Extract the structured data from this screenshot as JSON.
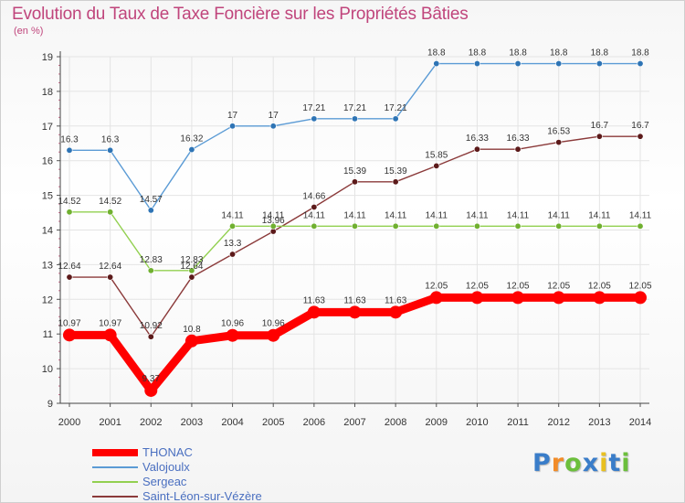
{
  "chart_data": {
    "type": "line",
    "title": "Evolution du Taux de Taxe Foncière sur les Propriétés Bâties",
    "ylabel": "(en %)",
    "xlabel": "",
    "ylim": [
      9,
      19
    ],
    "yticks": [
      "9",
      "10",
      "11",
      "12",
      "13",
      "14",
      "15",
      "16",
      "17",
      "18",
      "19"
    ],
    "categories": [
      "2000",
      "2001",
      "2002",
      "2003",
      "2004",
      "2005",
      "2006",
      "2007",
      "2008",
      "2009",
      "2010",
      "2011",
      "2012",
      "2013",
      "2014"
    ],
    "series": [
      {
        "name": "Valojoulx",
        "color": "#5b9bd5",
        "marker": "#2e74b5",
        "values": [
          16.3,
          16.3,
          14.57,
          16.32,
          17,
          17,
          17.21,
          17.21,
          17.21,
          18.8,
          18.8,
          18.8,
          18.8,
          18.8,
          18.8
        ],
        "labels": [
          "16.3",
          "16.3",
          "14.57",
          "16.32",
          "17",
          "17",
          "17.21",
          "17.21",
          "17.21",
          "18.8",
          "18.8",
          "18.8",
          "18.8",
          "18.8",
          "18.8"
        ]
      },
      {
        "name": "Saint-Léon-sur-Vézère",
        "color": "#8b3a3a",
        "marker": "#5c1a1a",
        "values": [
          12.64,
          12.64,
          10.92,
          12.64,
          13.3,
          13.96,
          14.66,
          15.39,
          15.39,
          15.85,
          16.33,
          16.33,
          16.53,
          16.7,
          16.7
        ],
        "labels": [
          "12.64",
          "12.64",
          "10.92",
          "12.64",
          "13.3",
          "13.96",
          "14.66",
          "15.39",
          "15.39",
          "15.85",
          "16.33",
          "16.33",
          "16.53",
          "16.7",
          "16.7"
        ]
      },
      {
        "name": "Sergeac",
        "color": "#92d050",
        "marker": "#70b030",
        "values": [
          14.52,
          14.52,
          12.83,
          12.83,
          14.11,
          14.11,
          14.11,
          14.11,
          14.11,
          14.11,
          14.11,
          14.11,
          14.11,
          14.11,
          14.11
        ],
        "labels": [
          "14.52",
          "14.52",
          "12.83",
          "12.83",
          "14.11",
          "14.11",
          "14.11",
          "14.11",
          "14.11",
          "14.11",
          "14.11",
          "14.11",
          "14.11",
          "14.11",
          "14.11"
        ]
      },
      {
        "name": "THONAC",
        "color": "#ff0000",
        "marker": "#ff0000",
        "values": [
          10.97,
          10.97,
          9.37,
          10.8,
          10.96,
          10.96,
          11.63,
          11.63,
          11.63,
          12.05,
          12.05,
          12.05,
          12.05,
          12.05,
          12.05
        ],
        "labels": [
          "10.97",
          "10.97",
          "9.37",
          "10.8",
          "10.96",
          "10.96",
          "11.63",
          "11.63",
          "11.63",
          "12.05",
          "12.05",
          "12.05",
          "12.05",
          "12.05",
          "12.05"
        ]
      }
    ],
    "legend": {
      "position": "bottom-left",
      "items": [
        {
          "name": "THONAC",
          "color": "#ff0000"
        },
        {
          "name": "Valojoulx",
          "color": "#5b9bd5"
        },
        {
          "name": "Sergeac",
          "color": "#92d050"
        },
        {
          "name": "Saint-Léon-sur-Vézère",
          "color": "#8b3a3a"
        }
      ]
    }
  },
  "logo": {
    "letters": [
      "P",
      "r",
      "o",
      "x",
      "i",
      "t",
      "i"
    ],
    "colors": [
      "#3a7dc9",
      "#f28c28",
      "#6cbf3c",
      "#3a7dc9",
      "#e8c020",
      "#3a7dc9",
      "#6cbf3c"
    ]
  }
}
